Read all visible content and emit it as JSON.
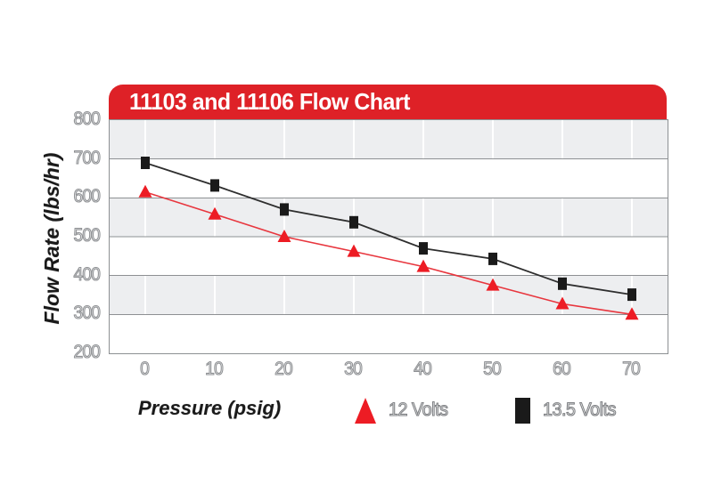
{
  "chart": {
    "title": "11103 and 11106 Flow Chart",
    "y_axis_title": "Flow Rate (lbs/hr)",
    "x_axis_title": "Pressure (psig)"
  },
  "colors": {
    "banner_red": "#de2127",
    "series_red": "#ed1c24",
    "series_red_line": "#e8363e",
    "series_black": "#1a1a1a",
    "series_black_line": "#2e2e2e",
    "band_gray": "#edeef0",
    "band_white": "#ffffff",
    "grid_line": "#8d9093",
    "vertical_grid": "#ffffff"
  },
  "chart_data": {
    "type": "line",
    "title": "11103 and 11106 Flow Chart",
    "xlabel": "Pressure (psig)",
    "ylabel": "Flow Rate (lbs/hr)",
    "x": [
      0,
      10,
      20,
      30,
      40,
      50,
      60,
      70
    ],
    "x_ticks": [
      "0",
      "10",
      "20",
      "30",
      "40",
      "50",
      "60",
      "70"
    ],
    "y_ticks": [
      "800",
      "700",
      "600",
      "500",
      "400",
      "300",
      "200"
    ],
    "ylim": [
      200,
      800
    ],
    "xlim": [
      0,
      70
    ],
    "grid": "horizontal-bands",
    "legend_position": "bottom",
    "series": [
      {
        "name": "12 Volts",
        "marker": "triangle",
        "color": "#ed1c24",
        "values": [
          615,
          558,
          500,
          462,
          423,
          375,
          327,
          300
        ]
      },
      {
        "name": "13.5 Volts",
        "marker": "square",
        "color": "#1a1a1a",
        "values": [
          690,
          632,
          570,
          537,
          470,
          443,
          379,
          351
        ]
      }
    ]
  }
}
